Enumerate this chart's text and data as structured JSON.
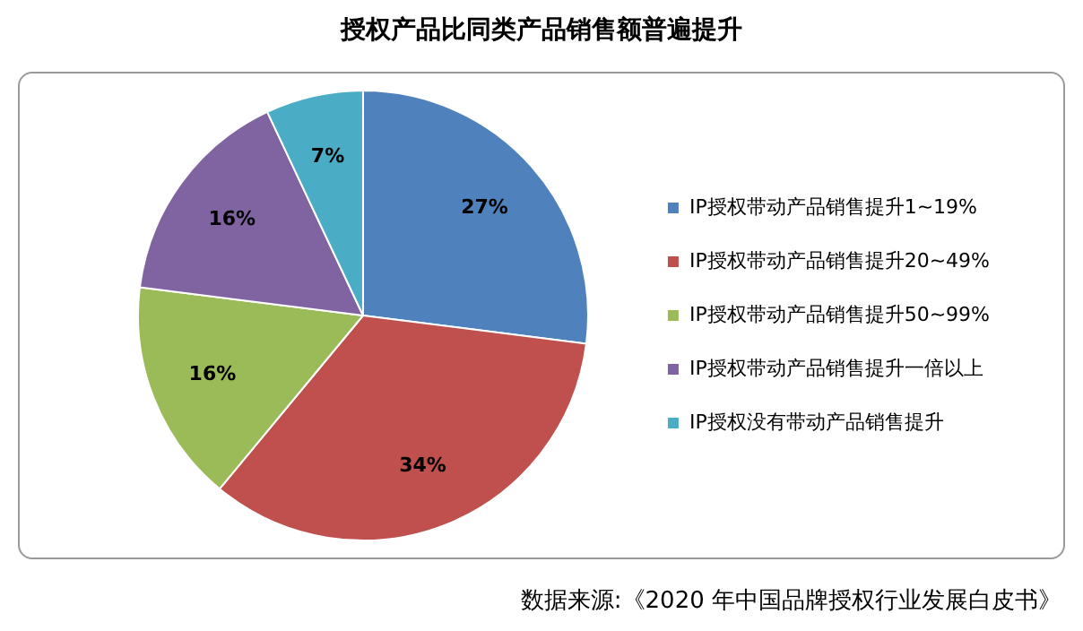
{
  "chart_data": {
    "type": "pie",
    "title": "授权产品比同类产品销售额普遍提升",
    "categories": [
      "IP授权带动产品销售提升1~19%",
      "IP授权带动产品销售提升20~49%",
      "IP授权带动产品销售提升50~99%",
      "IP授权带动产品销售提升一倍以上",
      "IP授权没有带动产品销售提升"
    ],
    "values": [
      27,
      34,
      16,
      16,
      7
    ],
    "value_labels": [
      "27%",
      "34%",
      "16%",
      "16%",
      "7%"
    ],
    "colors": [
      "#4f81bd",
      "#c0504d",
      "#9bbb59",
      "#8064a2",
      "#4bacc6"
    ],
    "legend": "right",
    "annotations": [
      "数据来源:《2020 年中国品牌授权行业发展白皮书》"
    ]
  }
}
